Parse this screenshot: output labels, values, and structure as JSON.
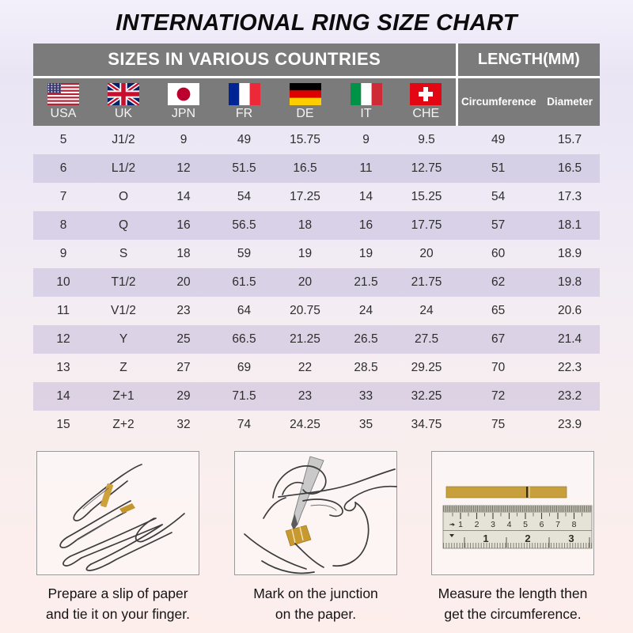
{
  "page": {
    "title": "INTERNATIONAL RING SIZE CHART"
  },
  "table": {
    "header_left": "SIZES IN VARIOUS COUNTRIES",
    "header_right": "LENGTH(MM)",
    "countries": [
      {
        "code": "USA"
      },
      {
        "code": "UK"
      },
      {
        "code": "JPN"
      },
      {
        "code": "FR"
      },
      {
        "code": "DE"
      },
      {
        "code": "IT"
      },
      {
        "code": "CHE"
      }
    ],
    "length_columns": [
      "Circumference",
      "Diameter"
    ]
  },
  "steps": [
    {
      "line1": "Prepare a slip of paper",
      "line2": "and tie it on your finger."
    },
    {
      "line1": "Mark on the junction",
      "line2": "on the paper."
    },
    {
      "line1": "Measure the length then",
      "line2": "get the circumference."
    }
  ],
  "ruler": {
    "cm": [
      "1",
      "2",
      "3",
      "4",
      "5",
      "6",
      "7",
      "8"
    ],
    "inch": [
      "1",
      "2",
      "3"
    ]
  },
  "colors": {
    "header_gray": "#7b7b7b",
    "alt_row_lavender": "#d9d2e6",
    "paper_strip_gold": "#c79f3c",
    "background_top": "#f3f0fb",
    "background_bottom": "#fdeeec"
  },
  "chart_data": {
    "type": "table",
    "title": "INTERNATIONAL RING SIZE CHART",
    "section_headers": [
      "SIZES IN VARIOUS COUNTRIES",
      "LENGTH(MM)"
    ],
    "columns": [
      "USA",
      "UK",
      "JPN",
      "FR",
      "DE",
      "IT",
      "CHE",
      "Circumference",
      "Diameter"
    ],
    "rows": [
      [
        "5",
        "J1/2",
        "9",
        "49",
        "15.75",
        "9",
        "9.5",
        "49",
        "15.7"
      ],
      [
        "6",
        "L1/2",
        "12",
        "51.5",
        "16.5",
        "11",
        "12.75",
        "51",
        "16.5"
      ],
      [
        "7",
        "O",
        "14",
        "54",
        "17.25",
        "14",
        "15.25",
        "54",
        "17.3"
      ],
      [
        "8",
        "Q",
        "16",
        "56.5",
        "18",
        "16",
        "17.75",
        "57",
        "18.1"
      ],
      [
        "9",
        "S",
        "18",
        "59",
        "19",
        "19",
        "20",
        "60",
        "18.9"
      ],
      [
        "10",
        "T1/2",
        "20",
        "61.5",
        "20",
        "21.5",
        "21.75",
        "62",
        "19.8"
      ],
      [
        "11",
        "V1/2",
        "23",
        "64",
        "20.75",
        "24",
        "24",
        "65",
        "20.6"
      ],
      [
        "12",
        "Y",
        "25",
        "66.5",
        "21.25",
        "26.5",
        "27.5",
        "67",
        "21.4"
      ],
      [
        "13",
        "Z",
        "27",
        "69",
        "22",
        "28.5",
        "29.25",
        "70",
        "22.3"
      ],
      [
        "14",
        "Z+1",
        "29",
        "71.5",
        "23",
        "33",
        "32.25",
        "72",
        "23.2"
      ],
      [
        "15",
        "Z+2",
        "32",
        "74",
        "24.25",
        "35",
        "34.75",
        "75",
        "23.9"
      ]
    ]
  }
}
